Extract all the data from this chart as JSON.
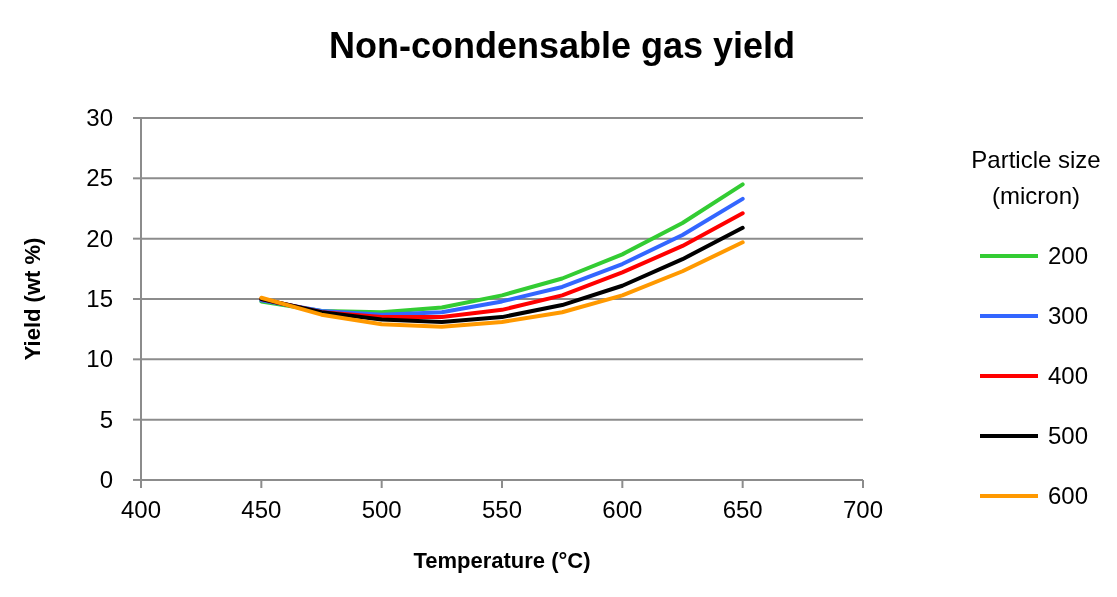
{
  "chart_data": {
    "type": "line",
    "title": "Non-condensable  gas yield",
    "xlabel": "Temperature (°C)",
    "ylabel": "Yield (wt %)",
    "legend_title": "Particle size (micron)",
    "x": [
      450,
      475,
      500,
      525,
      550,
      575,
      600,
      625,
      650
    ],
    "series": [
      {
        "name": "200",
        "color": "#33cc33",
        "values": [
          14.8,
          14.0,
          13.9,
          14.3,
          15.3,
          16.7,
          18.7,
          21.3,
          24.5
        ]
      },
      {
        "name": "300",
        "color": "#3366ff",
        "values": [
          14.9,
          14.0,
          13.7,
          13.9,
          14.8,
          16.0,
          17.9,
          20.3,
          23.3
        ]
      },
      {
        "name": "400",
        "color": "#ff0000",
        "values": [
          15.0,
          13.9,
          13.5,
          13.5,
          14.1,
          15.3,
          17.2,
          19.4,
          22.1
        ]
      },
      {
        "name": "500",
        "color": "#000000",
        "values": [
          15.0,
          13.9,
          13.3,
          13.1,
          13.5,
          14.5,
          16.1,
          18.3,
          20.9
        ]
      },
      {
        "name": "600",
        "color": "#ff9900",
        "values": [
          15.1,
          13.7,
          12.9,
          12.7,
          13.1,
          13.9,
          15.3,
          17.3,
          19.7
        ]
      }
    ],
    "xlim": [
      400,
      700
    ],
    "xticks": [
      400,
      450,
      500,
      550,
      600,
      650,
      700
    ],
    "ylim": [
      0,
      30
    ],
    "yticks": [
      0,
      5,
      10,
      15,
      20,
      25,
      30
    ],
    "grid": "y",
    "legend": "right",
    "marker": "none",
    "line_style": "solid"
  }
}
